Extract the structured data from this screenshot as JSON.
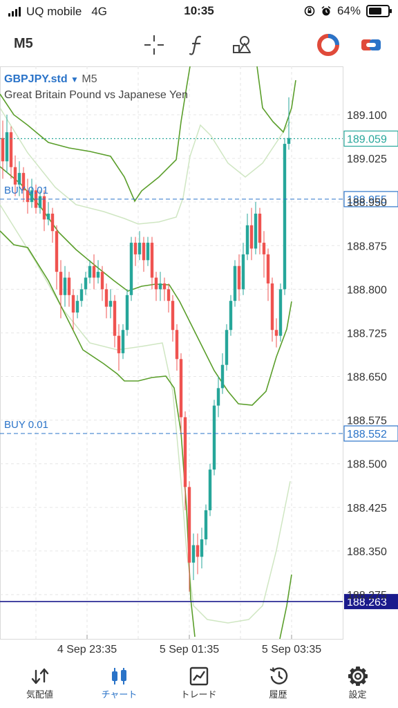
{
  "status": {
    "carrier": "UQ mobile",
    "network": "4G",
    "time": "10:35",
    "battery": "64%"
  },
  "toolbar": {
    "period": "M5",
    "icons": [
      "crosshair-icon",
      "function-icon",
      "objects-icon",
      "one-click-trading-icon",
      "trade-toggle-icon"
    ]
  },
  "chart": {
    "symbol": "GBPJPY.std",
    "symbol_arrow": "▼",
    "period": "M5",
    "description": "Great Britain Pound vs Japanese Yen",
    "price_labels": [
      "189.100",
      "189.025",
      "188.950",
      "188.875",
      "188.800",
      "188.725",
      "188.650",
      "188.575",
      "188.500",
      "188.425",
      "188.350",
      "188.275"
    ],
    "current_price": "189.059",
    "orders": [
      {
        "label": "BUY 0.01",
        "price": "188.955"
      },
      {
        "label": "BUY 0.01",
        "price": "188.552"
      }
    ],
    "low_line_price": "188.263",
    "time_labels": [
      "4 Sep 23:35",
      "5 Sep 01:35",
      "5 Sep 03:35"
    ],
    "colors": {
      "bull": "#26a69a",
      "bear": "#ef5350",
      "band": "#5a9e2a",
      "band_outer": "#cfe6c2",
      "order": "#2a73c8",
      "low_line": "#1a1a8c"
    }
  },
  "nav": {
    "items": [
      {
        "label": "気配値",
        "icon": "quotes-icon"
      },
      {
        "label": "チャート",
        "icon": "chart-icon"
      },
      {
        "label": "トレード",
        "icon": "trade-icon"
      },
      {
        "label": "履歴",
        "icon": "history-icon"
      },
      {
        "label": "設定",
        "icon": "settings-icon"
      }
    ]
  }
}
